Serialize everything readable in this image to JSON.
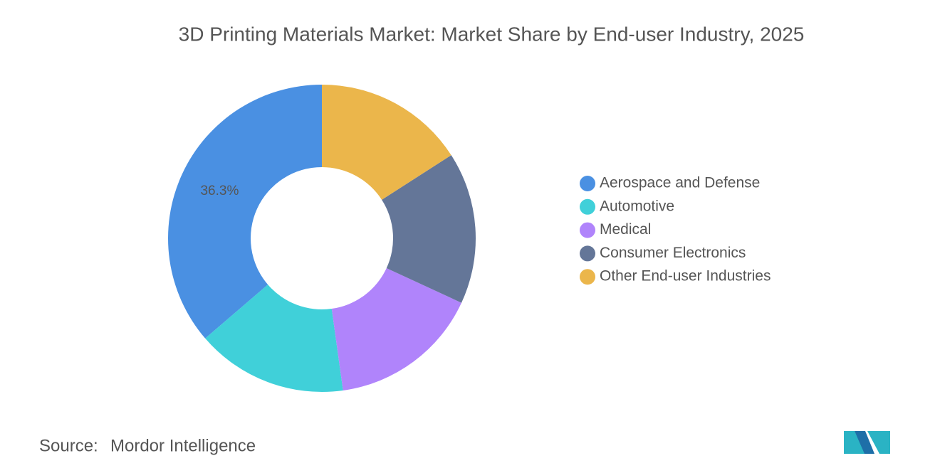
{
  "chart_data": {
    "type": "donut",
    "title": "3D Printing Materials Market: Market Share by End-user Industry, 2025",
    "categories": [
      "Aerospace and Defense",
      "Automotive",
      "Medical",
      "Consumer Electronics",
      "Other End-user Industries"
    ],
    "values": [
      36.3,
      15.9,
      15.9,
      16.0,
      15.9
    ],
    "value_labels": [
      "36.3%",
      null,
      null,
      null,
      null
    ],
    "colors": [
      "#4a90e2",
      "#40d0d9",
      "#b084fb",
      "#647698",
      "#ebb64b"
    ],
    "legend": "right"
  },
  "source_label": "Source:",
  "source": "Mordor Intelligence"
}
